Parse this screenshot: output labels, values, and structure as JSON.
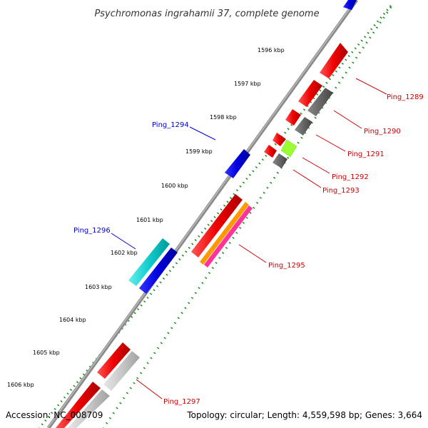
{
  "title": "Psychromonas ingrahamii 37, complete genome",
  "footer": {
    "accession": "Accession: NC_008709",
    "summary": "Topology: circular; Length: 4,559,598 bp; Genes: 3,664"
  },
  "kbp_ticks": [
    "1596 kbp",
    "1597 kbp",
    "1598 kbp",
    "1599 kbp",
    "1600 kbp",
    "1601 kbp",
    "1602 kbp",
    "1603 kbp",
    "1604 kbp",
    "1605 kbp",
    "1606 kbp"
  ],
  "gene_labels": {
    "ping_1289": "Ping_1289",
    "ping_1290": "Ping_1290",
    "ping_1291": "Ping_1291",
    "ping_1292": "Ping_1292",
    "ping_1293": "Ping_1293",
    "ping_1294": "Ping_1294",
    "ping_1295": "Ping_1295",
    "ping_1296": "Ping_1296",
    "ping_1297": "Ping_1297"
  },
  "colors": {
    "backbone": "#8a8a8a",
    "tick_dots": "#1a8a1a",
    "red_gene": "#ee0000",
    "gray_gene": "#666666",
    "light_gray_gene": "#c8c8c8",
    "blue_gene": "#0000dd",
    "cyan_gene": "#11cccc",
    "orange_gene": "#ff9900",
    "pink_gene": "#ff3399",
    "lime_gene": "#99ff33",
    "red_label": "#cc0000",
    "blue_label": "#0000cc"
  }
}
